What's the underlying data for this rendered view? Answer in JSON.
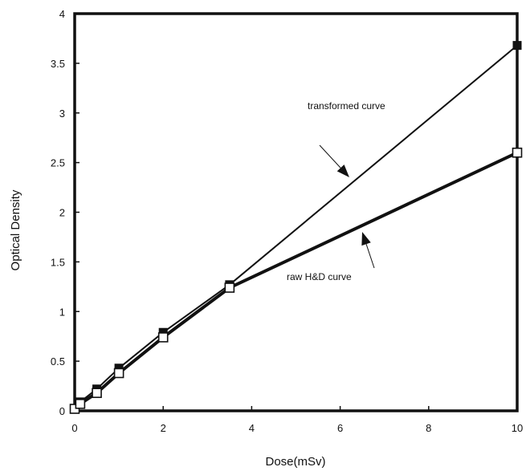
{
  "chart_data": {
    "type": "line",
    "title": "",
    "xlabel": "Dose(mSv)",
    "ylabel": "Optical Density",
    "xlim": [
      0,
      10
    ],
    "ylim": [
      0,
      4
    ],
    "x_ticks": [
      "0",
      "2",
      "4",
      "6",
      "8",
      "10"
    ],
    "y_ticks": [
      "0",
      "0.5",
      "1",
      "1.5",
      "2",
      "2.5",
      "3",
      "3.5",
      "4"
    ],
    "grid": false,
    "x": [
      0,
      0.125,
      0.5,
      1,
      2,
      3.5,
      10
    ],
    "series": [
      {
        "name": "transformed curve",
        "values": [
          0.02,
          0.09,
          0.22,
          0.43,
          0.79,
          1.27,
          3.68
        ],
        "color": "#111111",
        "marker": "square"
      },
      {
        "name": "raw H&D curve",
        "values": [
          0.02,
          0.07,
          0.18,
          0.38,
          0.74,
          1.24,
          2.6
        ],
        "color": "#111111",
        "marker": "open-square"
      }
    ],
    "annotations": [
      {
        "text": "transformed curve",
        "arrow_to": [
          4.5,
          1.72
        ]
      },
      {
        "text": "raw H&D curve",
        "arrow_to": [
          6.2,
          1.82
        ]
      }
    ]
  }
}
